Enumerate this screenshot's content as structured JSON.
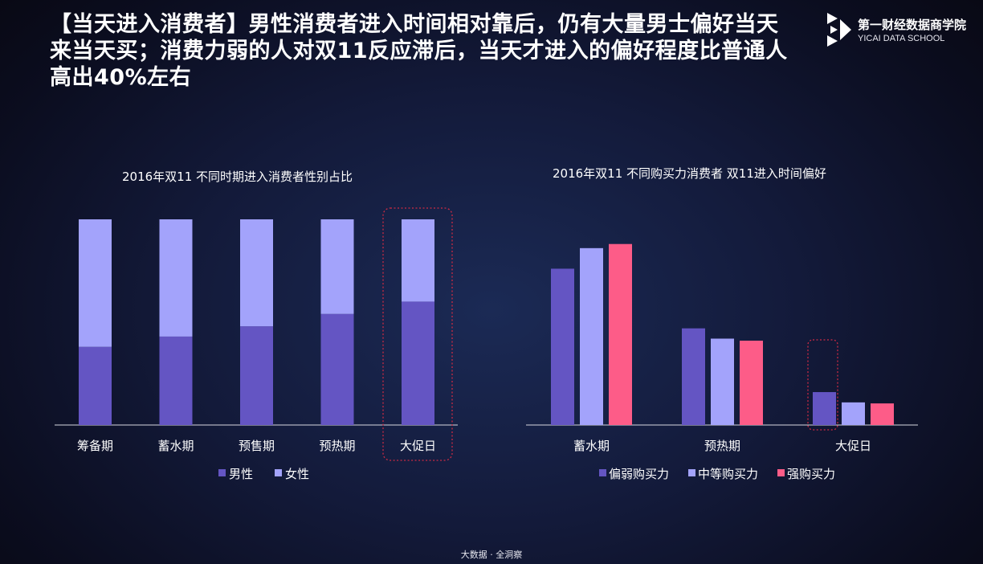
{
  "headline": "【当天进入消费者】男性消费者进入时间相对靠后，仍有大量男士偏好当天来当天买；消费力弱的人对双11反应滞后，当天才进入的偏好程度比普通人高出40%左右",
  "logo": {
    "name_cn": "第一财经数据商学院",
    "name_en": "YICAI DATA SCHOOL"
  },
  "footer": "大数据 · 全洞察",
  "colors": {
    "male": "#6455c3",
    "female": "#a3a3fb",
    "weak": "#6455c3",
    "medium": "#a3a3fb",
    "strong": "#fd5c88",
    "highlight": "#cc2b44"
  },
  "chart_data": [
    {
      "type": "bar",
      "stacked": true,
      "title": "2016年双11 不同时期进入消费者性别占比",
      "categories": [
        "筹备期",
        "蓄水期",
        "预售期",
        "预热期",
        "大促日"
      ],
      "series": [
        {
          "name": "男性",
          "values": [
            38,
            43,
            48,
            54,
            60
          ]
        },
        {
          "name": "女性",
          "values": [
            62,
            57,
            52,
            46,
            40
          ]
        }
      ],
      "ylim": [
        0,
        100
      ],
      "grid": false,
      "legend": "bottom",
      "highlight_category": "大促日"
    },
    {
      "type": "bar",
      "title": "2016年双11 不同购买力消费者 双11进入时间偏好",
      "categories": [
        "蓄水期",
        "预热期",
        "大促日"
      ],
      "series": [
        {
          "name": "偏弱购买力",
          "values": [
            76,
            47,
            16
          ]
        },
        {
          "name": "中等购买力",
          "values": [
            86,
            42,
            11
          ]
        },
        {
          "name": "强购买力",
          "values": [
            88,
            41,
            10.5
          ]
        }
      ],
      "ylim": [
        0,
        100
      ],
      "grid": false,
      "legend": "bottom",
      "highlight_category": "大促日",
      "highlight_series": "偏弱购买力"
    }
  ]
}
